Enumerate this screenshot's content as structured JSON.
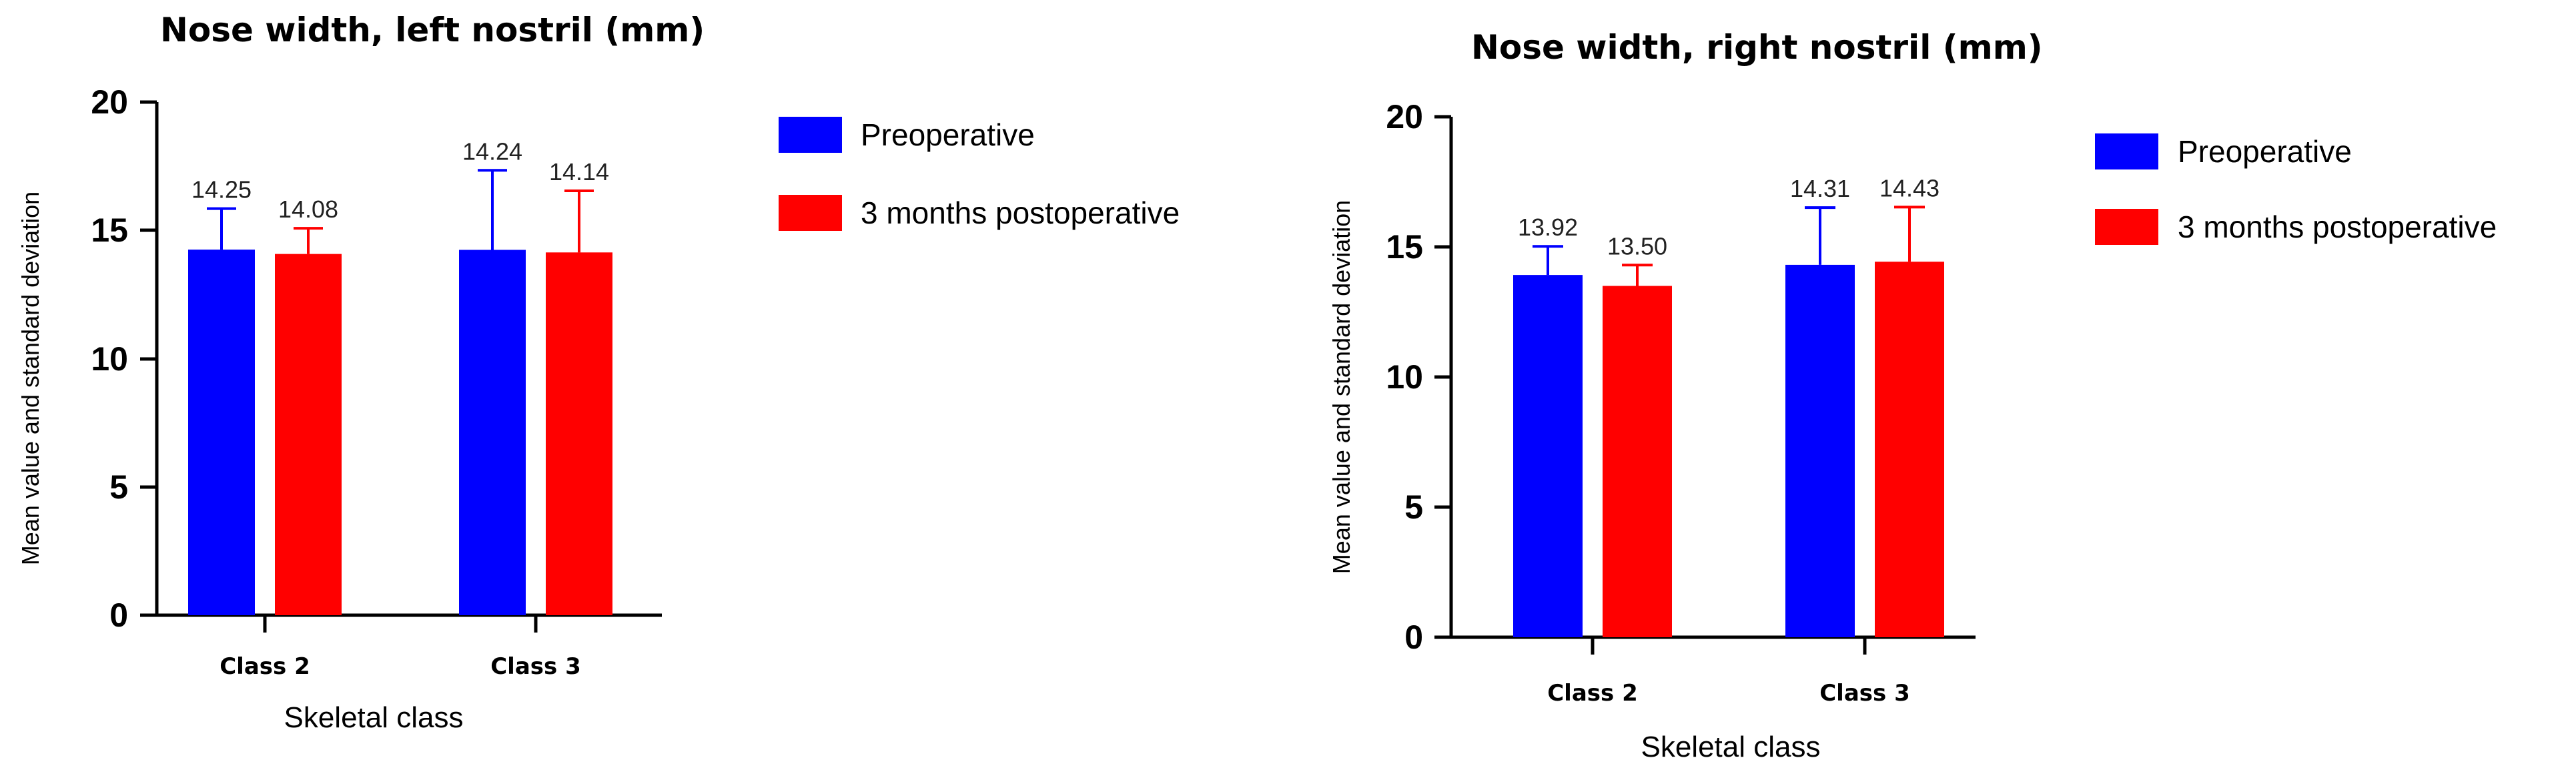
{
  "colors": {
    "preoperative": "#0000ff",
    "postoperative": "#ff0000",
    "axis": "#000000"
  },
  "chart_data": [
    {
      "type": "bar",
      "title": "Nose width, left nostril (mm)",
      "xlabel": "Skeletal class",
      "ylabel": "Mean value and standard deviation",
      "ylim": [
        0,
        20
      ],
      "yticks": [
        "0",
        "5",
        "10",
        "15",
        "20"
      ],
      "categories": [
        "Class 2",
        "Class 3"
      ],
      "legend_position": "right",
      "series": [
        {
          "name": "Preoperative",
          "color": "#0000ff",
          "values": [
            14.25,
            14.24
          ],
          "sd": [
            1.6,
            3.1
          ],
          "labels": [
            "14.25",
            "14.24"
          ]
        },
        {
          "name": "3 months postoperative",
          "color": "#ff0000",
          "values": [
            14.08,
            14.14
          ],
          "sd": [
            1.0,
            2.4
          ],
          "labels": [
            "14.08",
            "14.14"
          ]
        }
      ]
    },
    {
      "type": "bar",
      "title": "Nose width, right nostril (mm)",
      "xlabel": "Skeletal class",
      "ylabel": "Mean value and standard deviation",
      "ylim": [
        0,
        20
      ],
      "yticks": [
        "0",
        "5",
        "10",
        "15",
        "20"
      ],
      "categories": [
        "Class 2",
        "Class 3"
      ],
      "legend_position": "right",
      "series": [
        {
          "name": "Preoperative",
          "color": "#0000ff",
          "values": [
            13.92,
            14.31
          ],
          "sd": [
            1.1,
            2.2
          ],
          "labels": [
            "13.92",
            "14.31"
          ]
        },
        {
          "name": "3 months postoperative",
          "color": "#ff0000",
          "values": [
            13.5,
            14.43
          ],
          "sd": [
            0.8,
            2.1
          ],
          "labels": [
            "13.50",
            "14.43"
          ]
        }
      ]
    }
  ]
}
